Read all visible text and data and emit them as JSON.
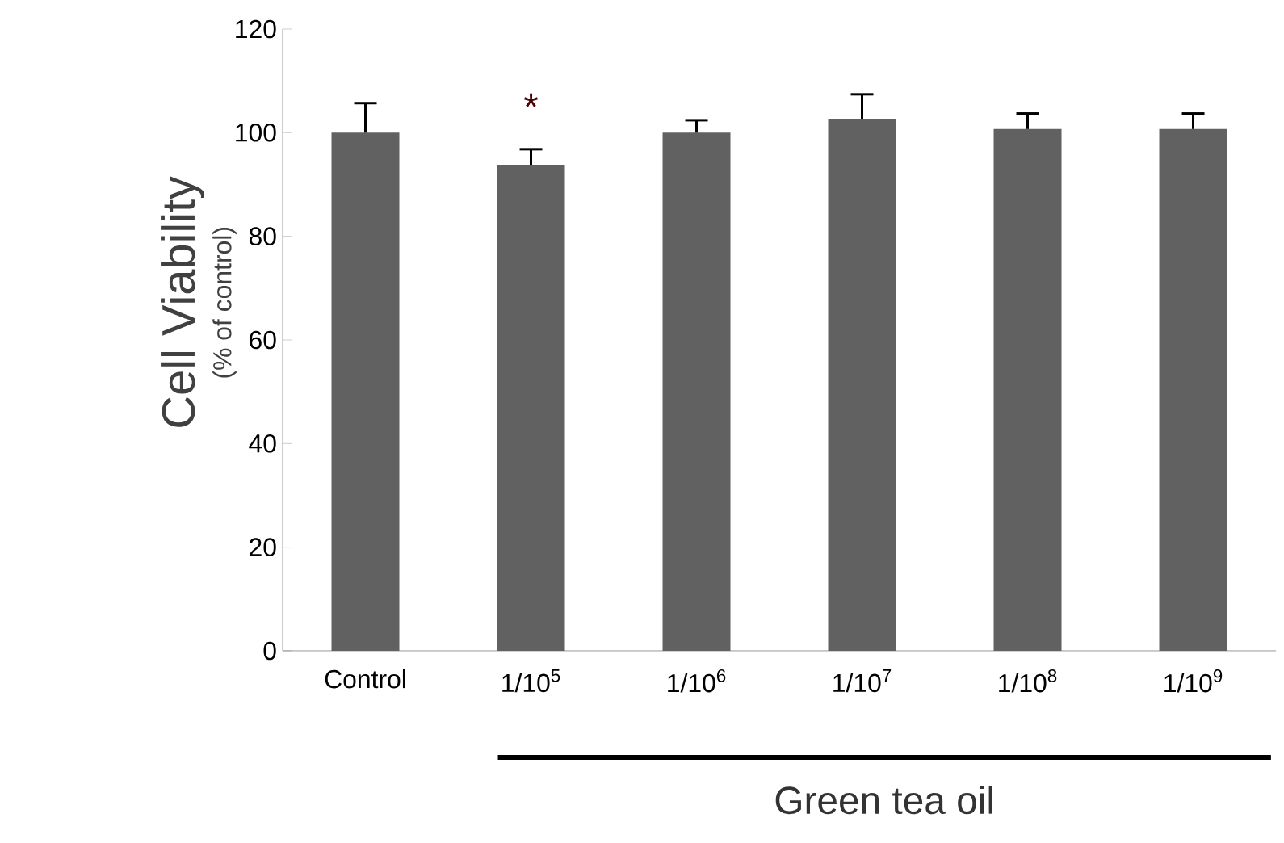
{
  "chart_data": {
    "type": "bar",
    "ylabel": "Cell Viability",
    "xlabel": "Green tea oil",
    "categories": [
      "Control",
      "1/10$^{5}$",
      "1/10$^{6}$",
      "1/10$^{7}$",
      "1/10$^{8}$",
      "1/10$^{9}$"
    ],
    "values": [
      100,
      93.8,
      100,
      102.7,
      100.7,
      100.7
    ],
    "errors": [
      [
        100,
        105.7
      ],
      [
        93.8,
        96.8
      ],
      [
        100,
        102.4
      ],
      [
        102.7,
        107.4
      ],
      [
        100.7,
        103.7
      ],
      [
        100.7,
        103.7
      ]
    ],
    "color": "#616161",
    "ylim": [
      0,
      120
    ],
    "yticks": [
      0,
      20,
      40,
      60,
      80,
      100,
      120
    ],
    "annotations": [
      "(% of control)",
      "*"
    ]
  }
}
